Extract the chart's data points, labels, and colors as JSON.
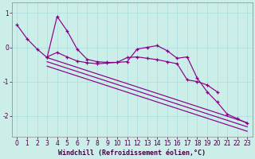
{
  "xlabel": "Windchill (Refroidissement éolien,°C)",
  "bg_color": "#cceee8",
  "grid_color": "#aadddd",
  "line_color": "#880088",
  "x_ticks": [
    0,
    1,
    2,
    3,
    4,
    5,
    6,
    7,
    8,
    9,
    10,
    11,
    12,
    13,
    14,
    15,
    16,
    17,
    18,
    19,
    20,
    21,
    22,
    23
  ],
  "xlim": [
    -0.5,
    23.5
  ],
  "ylim": [
    -2.6,
    1.3
  ],
  "yticks": [
    -2,
    -1,
    0,
    1
  ],
  "series1": {
    "x": [
      0,
      1,
      2,
      3,
      4,
      5,
      6,
      7,
      8,
      9,
      10,
      11,
      12,
      13,
      14,
      15,
      16,
      17,
      18,
      19,
      20,
      21,
      22,
      23
    ],
    "y": [
      0.65,
      0.25,
      -0.05,
      -0.3,
      0.9,
      0.48,
      -0.05,
      -0.35,
      -0.42,
      -0.44,
      -0.44,
      -0.42,
      -0.05,
      0.0,
      0.05,
      -0.1,
      -0.32,
      -0.28,
      -0.9,
      -1.3,
      -1.6,
      -1.95,
      -2.08,
      -2.22
    ]
  },
  "series2": {
    "x": [
      3,
      4,
      5,
      6,
      7,
      8,
      9,
      10,
      11,
      12,
      13,
      14,
      15,
      16,
      17,
      18,
      19,
      20
    ],
    "y": [
      -0.28,
      -0.15,
      -0.28,
      -0.4,
      -0.45,
      -0.48,
      -0.46,
      -0.44,
      -0.3,
      -0.28,
      -0.32,
      -0.36,
      -0.42,
      -0.48,
      -0.95,
      -1.0,
      -1.1,
      -1.3
    ]
  },
  "reg_line1": {
    "x": [
      3,
      23
    ],
    "y": [
      -0.3,
      -2.2
    ]
  },
  "reg_line2": {
    "x": [
      3,
      23
    ],
    "y": [
      -0.42,
      -2.32
    ]
  },
  "reg_line3": {
    "x": [
      3,
      23
    ],
    "y": [
      -0.55,
      -2.45
    ]
  }
}
